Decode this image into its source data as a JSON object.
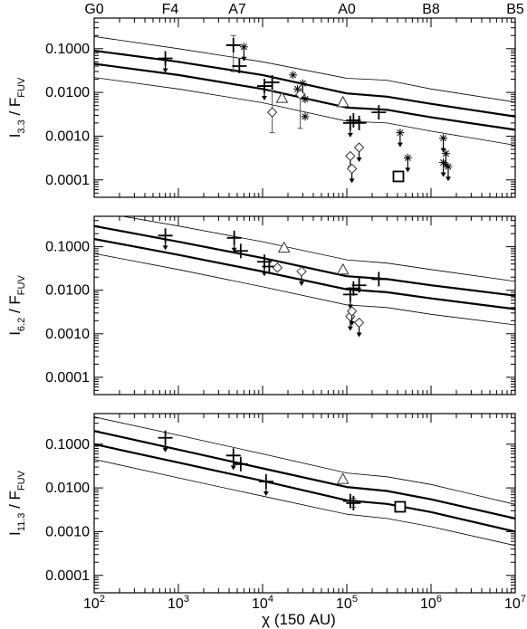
{
  "chart_data": {
    "type": "scatter",
    "x_axis": {
      "label_prefix": "χ",
      "label_suffix": " (150 AU)",
      "scale": "log",
      "range": [
        100,
        10000000
      ],
      "tick_labels": [
        {
          "value": 100,
          "base": "10",
          "exp": "2"
        },
        {
          "value": 1000,
          "base": "10",
          "exp": "3"
        },
        {
          "value": 10000,
          "base": "10",
          "exp": "4"
        },
        {
          "value": 100000,
          "base": "10",
          "exp": "5"
        },
        {
          "value": 1000000,
          "base": "10",
          "exp": "6"
        },
        {
          "value": 10000000,
          "base": "10",
          "exp": "7"
        }
      ]
    },
    "spectral_types": [
      {
        "label": "G0",
        "x": 100
      },
      {
        "label": "F4",
        "x": 800
      },
      {
        "label": "A7",
        "x": 5000
      },
      {
        "label": "A0",
        "x": 100000
      },
      {
        "label": "B8",
        "x": 1000000
      },
      {
        "label": "B5",
        "x": 10000000
      }
    ],
    "y_scale": "log",
    "y_tick_labels": [
      "0.0001",
      "0.0010",
      "0.0100",
      "0.1000"
    ],
    "y_tick_values": [
      0.0001,
      0.001,
      0.01,
      0.1
    ],
    "panels": [
      {
        "ylabel_main": "I",
        "ylabel_sub": "3.3",
        "ylabel_mid": " / F",
        "ylabel_sub2": "FUV",
        "ylim": [
          4e-05,
          0.5
        ],
        "model_lines": [
          {
            "style": "thick",
            "x": [
              100,
              1000,
              10000,
              100000,
              300000,
              1000000,
              10000000
            ],
            "y": [
              0.09,
              0.05,
              0.025,
              0.0095,
              0.008,
              0.0055,
              0.0028
            ]
          },
          {
            "style": "thick",
            "x": [
              100,
              1000,
              10000,
              100000,
              300000,
              1000000,
              10000000
            ],
            "y": [
              0.045,
              0.025,
              0.012,
              0.0045,
              0.004,
              0.0027,
              0.0014
            ]
          },
          {
            "style": "thin",
            "x": [
              100,
              1000,
              10000,
              100000,
              300000,
              1000000,
              10000000
            ],
            "y": [
              0.19,
              0.1,
              0.05,
              0.021,
              0.019,
              0.012,
              0.006
            ]
          },
          {
            "style": "thin",
            "x": [
              100,
              1000,
              10000,
              100000,
              300000,
              1000000,
              10000000
            ],
            "y": [
              0.022,
              0.012,
              0.0058,
              0.0022,
              0.002,
              0.0013,
              0.00062
            ]
          }
        ],
        "points": [
          {
            "marker": "plus",
            "x": 700,
            "y": 0.06,
            "upper": true
          },
          {
            "marker": "plus",
            "x": 4500,
            "y": 0.12,
            "err": [
              0.03,
              0.2
            ]
          },
          {
            "marker": "plus",
            "x": 5300,
            "y": 0.04
          },
          {
            "marker": "plus",
            "x": 10500,
            "y": 0.014,
            "upper": true
          },
          {
            "marker": "plus",
            "x": 13000,
            "y": 0.017
          },
          {
            "marker": "plus",
            "x": 110000,
            "y": 0.002,
            "upper": true
          },
          {
            "marker": "plus",
            "x": 120000,
            "y": 0.0023
          },
          {
            "marker": "plus",
            "x": 140000,
            "y": 0.002
          },
          {
            "marker": "plus",
            "x": 240000,
            "y": 0.0035
          },
          {
            "marker": "star",
            "x": 6000,
            "y": 0.11,
            "upper": true
          },
          {
            "marker": "star",
            "x": 23000,
            "y": 0.025
          },
          {
            "marker": "star",
            "x": 26000,
            "y": 0.012
          },
          {
            "marker": "star",
            "x": 30000,
            "y": 0.016,
            "upper": true
          },
          {
            "marker": "star",
            "x": 32000,
            "y": 0.007
          },
          {
            "marker": "star",
            "x": 32000,
            "y": 0.0028
          },
          {
            "marker": "star",
            "x": 430000,
            "y": 0.0012,
            "upper": true
          },
          {
            "marker": "star",
            "x": 530000,
            "y": 0.00032,
            "upper": true
          },
          {
            "marker": "star",
            "x": 1400000,
            "y": 0.0009,
            "upper": true
          },
          {
            "marker": "star",
            "x": 1500000,
            "y": 0.0004,
            "upper": true
          },
          {
            "marker": "star",
            "x": 1400000,
            "y": 0.00025,
            "upper": true
          },
          {
            "marker": "star",
            "x": 1600000,
            "y": 0.0002,
            "upper": true
          },
          {
            "marker": "triangle",
            "x": 17000,
            "y": 0.0075
          },
          {
            "marker": "triangle",
            "x": 90000,
            "y": 0.006
          },
          {
            "marker": "diamond",
            "x": 13000,
            "y": 0.0035,
            "err": [
              0.0012,
              0.011
            ]
          },
          {
            "marker": "diamond",
            "x": 28000,
            "y": 0.009,
            "err": [
              0.0015,
              0.012
            ]
          },
          {
            "marker": "diamond",
            "x": 110000,
            "y": 0.00035,
            "upper": true
          },
          {
            "marker": "diamond",
            "x": 115000,
            "y": 0.00018,
            "upper": true
          },
          {
            "marker": "diamond",
            "x": 140000,
            "y": 0.00055,
            "upper": true
          },
          {
            "marker": "square",
            "x": 410000,
            "y": 0.00012
          }
        ]
      },
      {
        "ylabel_main": "I",
        "ylabel_sub": "6.2",
        "ylabel_mid": " / F",
        "ylabel_sub2": "FUV",
        "ylim": [
          4e-05,
          0.5
        ],
        "model_lines": [
          {
            "style": "thick",
            "x": [
              100,
              1000,
              10000,
              100000,
              300000,
              1000000,
              10000000
            ],
            "y": [
              0.3,
              0.13,
              0.055,
              0.021,
              0.018,
              0.013,
              0.0075
            ]
          },
          {
            "style": "thick",
            "x": [
              100,
              1000,
              10000,
              100000,
              300000,
              1000000,
              10000000
            ],
            "y": [
              0.15,
              0.065,
              0.027,
              0.0105,
              0.009,
              0.0065,
              0.0037
            ]
          },
          {
            "style": "thin",
            "x": [
              100,
              1000,
              10000,
              100000,
              300000,
              1000000,
              10000000
            ],
            "y": [
              0.65,
              0.3,
              0.13,
              0.05,
              0.042,
              0.03,
              0.016
            ]
          },
          {
            "style": "thin",
            "x": [
              100,
              1000,
              10000,
              100000,
              300000,
              1000000,
              10000000
            ],
            "y": [
              0.07,
              0.03,
              0.012,
              0.0046,
              0.004,
              0.0028,
              0.0016
            ]
          }
        ],
        "points": [
          {
            "marker": "plus",
            "x": 700,
            "y": 0.18,
            "upper": true
          },
          {
            "marker": "plus",
            "x": 4600,
            "y": 0.16,
            "upper": true
          },
          {
            "marker": "plus",
            "x": 5500,
            "y": 0.08
          },
          {
            "marker": "plus",
            "x": 10500,
            "y": 0.045,
            "upper": true
          },
          {
            "marker": "plus",
            "x": 12000,
            "y": 0.035
          },
          {
            "marker": "plus",
            "x": 110000,
            "y": 0.008,
            "upper": true
          },
          {
            "marker": "plus",
            "x": 120000,
            "y": 0.011
          },
          {
            "marker": "plus",
            "x": 140000,
            "y": 0.013
          },
          {
            "marker": "plus",
            "x": 240000,
            "y": 0.018
          },
          {
            "marker": "triangle",
            "x": 18000,
            "y": 0.095
          },
          {
            "marker": "triangle",
            "x": 90000,
            "y": 0.03
          },
          {
            "marker": "diamond",
            "x": 15000,
            "y": 0.033
          },
          {
            "marker": "diamond",
            "x": 29000,
            "y": 0.027,
            "upper": true
          },
          {
            "marker": "diamond",
            "x": 110000,
            "y": 0.0025,
            "upper": true
          },
          {
            "marker": "diamond",
            "x": 115000,
            "y": 0.0033,
            "upper": true
          },
          {
            "marker": "diamond",
            "x": 140000,
            "y": 0.0018,
            "upper": true
          }
        ]
      },
      {
        "ylabel_main": "I",
        "ylabel_sub": "11.3",
        "ylabel_mid": " / F",
        "ylabel_sub2": "FUV",
        "ylim": [
          4e-05,
          0.5
        ],
        "model_lines": [
          {
            "style": "thick",
            "x": [
              100,
              1000,
              10000,
              100000,
              300000,
              1000000,
              10000000
            ],
            "y": [
              0.2,
              0.075,
              0.028,
              0.0105,
              0.0085,
              0.0055,
              0.002
            ]
          },
          {
            "style": "thick",
            "x": [
              100,
              1000,
              10000,
              100000,
              300000,
              1000000,
              10000000
            ],
            "y": [
              0.1,
              0.038,
              0.0145,
              0.0052,
              0.0043,
              0.0028,
              0.001
            ]
          },
          {
            "style": "thin",
            "x": [
              100,
              1000,
              10000,
              100000,
              300000,
              1000000,
              10000000
            ],
            "y": [
              0.42,
              0.16,
              0.06,
              0.022,
              0.018,
              0.012,
              0.0042
            ]
          },
          {
            "style": "thin",
            "x": [
              100,
              1000,
              10000,
              100000,
              300000,
              1000000,
              10000000
            ],
            "y": [
              0.045,
              0.017,
              0.0065,
              0.0025,
              0.002,
              0.0013,
              0.00048
            ]
          }
        ],
        "points": [
          {
            "marker": "plus",
            "x": 700,
            "y": 0.14,
            "upper": true
          },
          {
            "marker": "plus",
            "x": 4500,
            "y": 0.055,
            "upper": true
          },
          {
            "marker": "plus",
            "x": 5500,
            "y": 0.035
          },
          {
            "marker": "plus",
            "x": 11000,
            "y": 0.014,
            "upper": true
          },
          {
            "marker": "plus",
            "x": 110000,
            "y": 0.005
          },
          {
            "marker": "plus",
            "x": 120000,
            "y": 0.0045,
            "err": [
              0.0036,
              0.0058
            ]
          },
          {
            "marker": "triangle",
            "x": 90000,
            "y": 0.016
          },
          {
            "marker": "square",
            "x": 430000,
            "y": 0.0037
          }
        ]
      }
    ]
  }
}
